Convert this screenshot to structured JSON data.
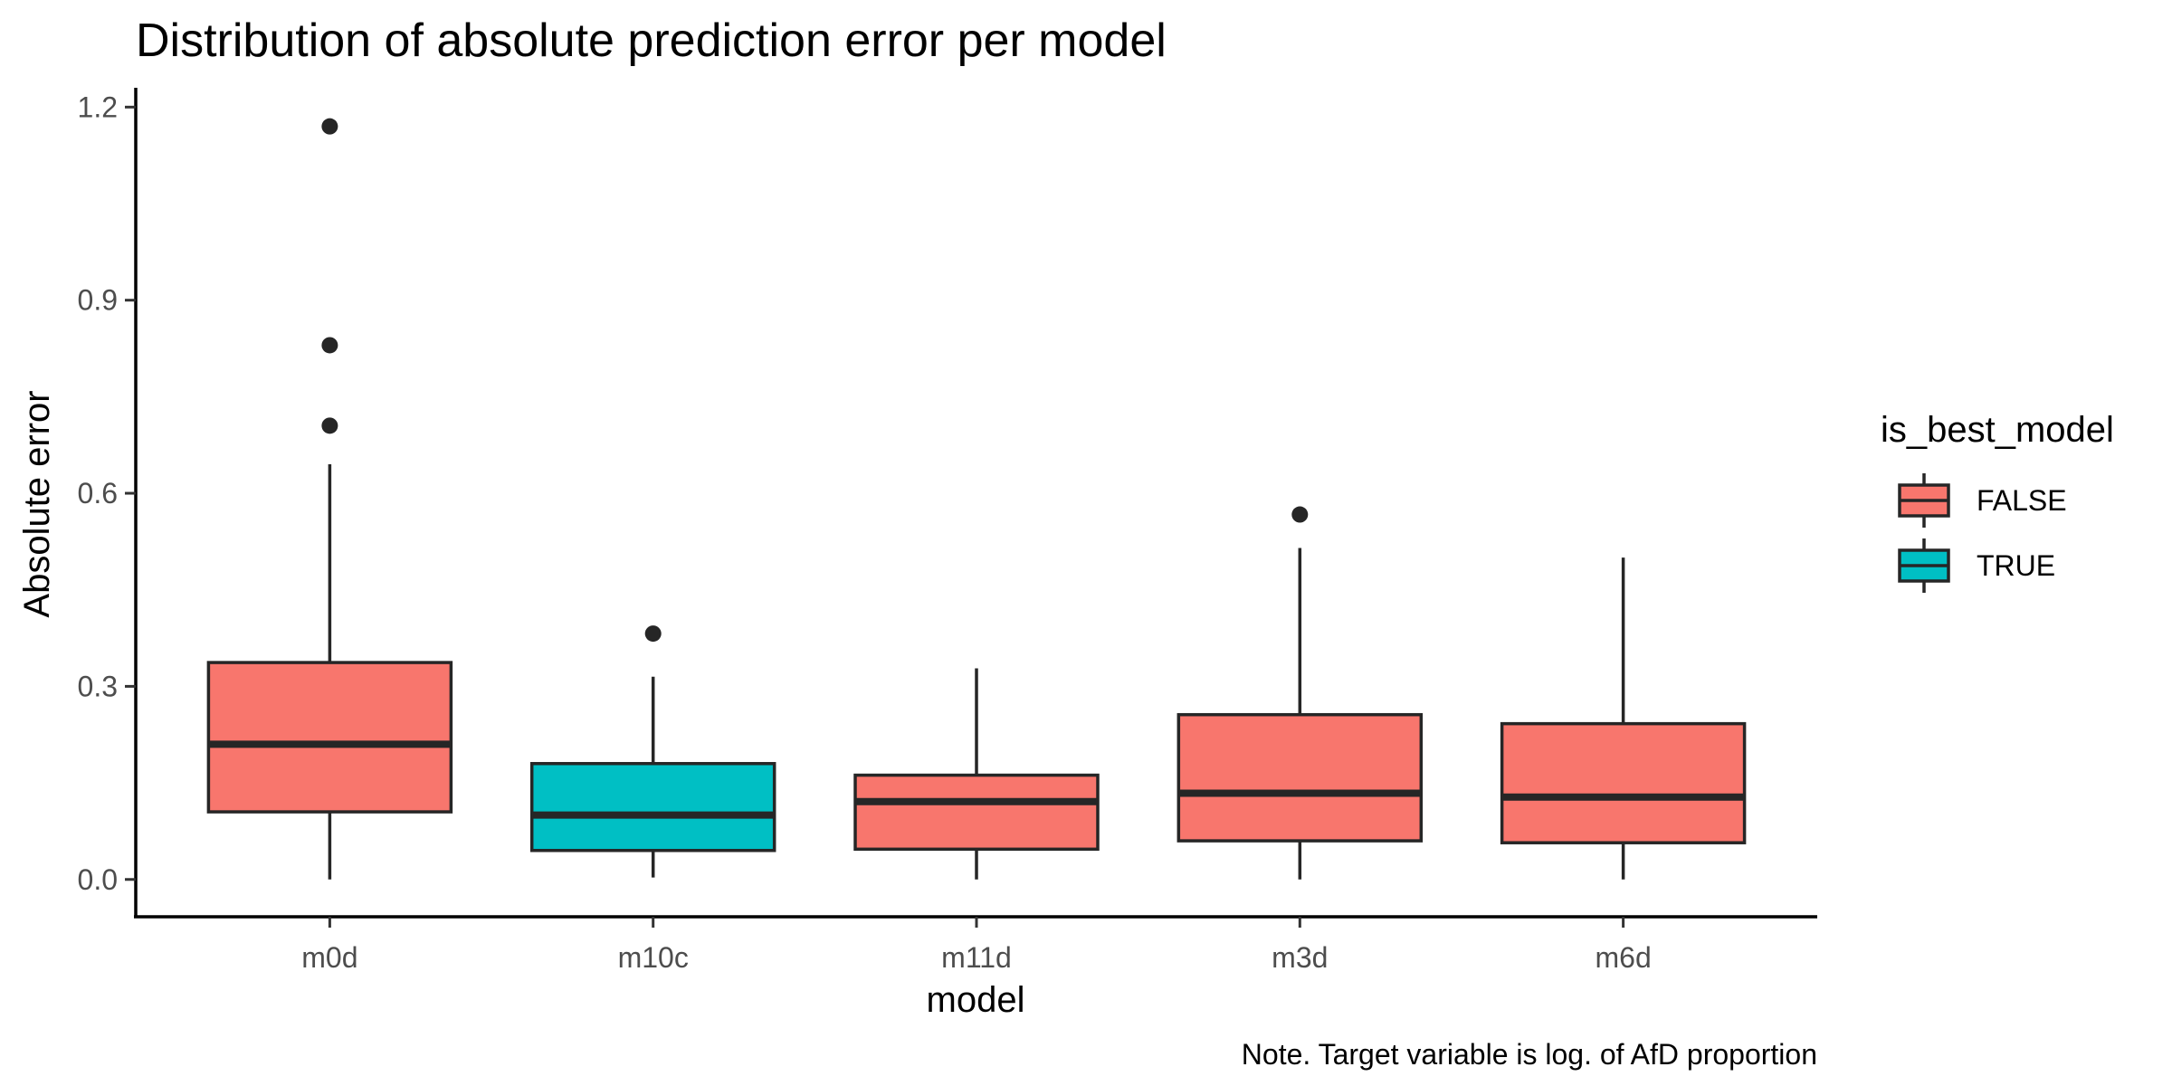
{
  "chart_data": {
    "type": "boxplot",
    "title": "Distribution of absolute prediction error per model",
    "xlabel": "model",
    "ylabel": "Absolute error",
    "caption": "Note. Target variable is log. of AfD proportion",
    "ylim": [
      -0.058,
      1.23
    ],
    "yticks": [
      0.0,
      0.3,
      0.6,
      0.9,
      1.2
    ],
    "ytick_labels": [
      "0.0",
      "0.3",
      "0.6",
      "0.9",
      "1.2"
    ],
    "grid": false,
    "legend": {
      "title": "is_best_model",
      "position": "right",
      "items": [
        {
          "label": "FALSE",
          "color": "#F8766D"
        },
        {
          "label": "TRUE",
          "color": "#00BFC4"
        }
      ]
    },
    "categories": [
      "m0d",
      "m10c",
      "m11d",
      "m3d",
      "m6d"
    ],
    "boxes": [
      {
        "category": "m0d",
        "is_best_model": "FALSE",
        "whisker_low": 0.0,
        "q1": 0.105,
        "median": 0.21,
        "q3": 0.337,
        "whisker_high": 0.645,
        "outliers": [
          0.705,
          0.83,
          1.17
        ]
      },
      {
        "category": "m10c",
        "is_best_model": "TRUE",
        "whisker_low": 0.003,
        "q1": 0.045,
        "median": 0.1,
        "q3": 0.18,
        "whisker_high": 0.315,
        "outliers": [
          0.382
        ]
      },
      {
        "category": "m11d",
        "is_best_model": "FALSE",
        "whisker_low": 0.0,
        "q1": 0.047,
        "median": 0.121,
        "q3": 0.162,
        "whisker_high": 0.328,
        "outliers": []
      },
      {
        "category": "m3d",
        "is_best_model": "FALSE",
        "whisker_low": 0.0,
        "q1": 0.06,
        "median": 0.134,
        "q3": 0.256,
        "whisker_high": 0.515,
        "outliers": [
          0.567
        ]
      },
      {
        "category": "m6d",
        "is_best_model": "FALSE",
        "whisker_low": 0.0,
        "q1": 0.057,
        "median": 0.128,
        "q3": 0.242,
        "whisker_high": 0.5,
        "outliers": []
      }
    ]
  }
}
